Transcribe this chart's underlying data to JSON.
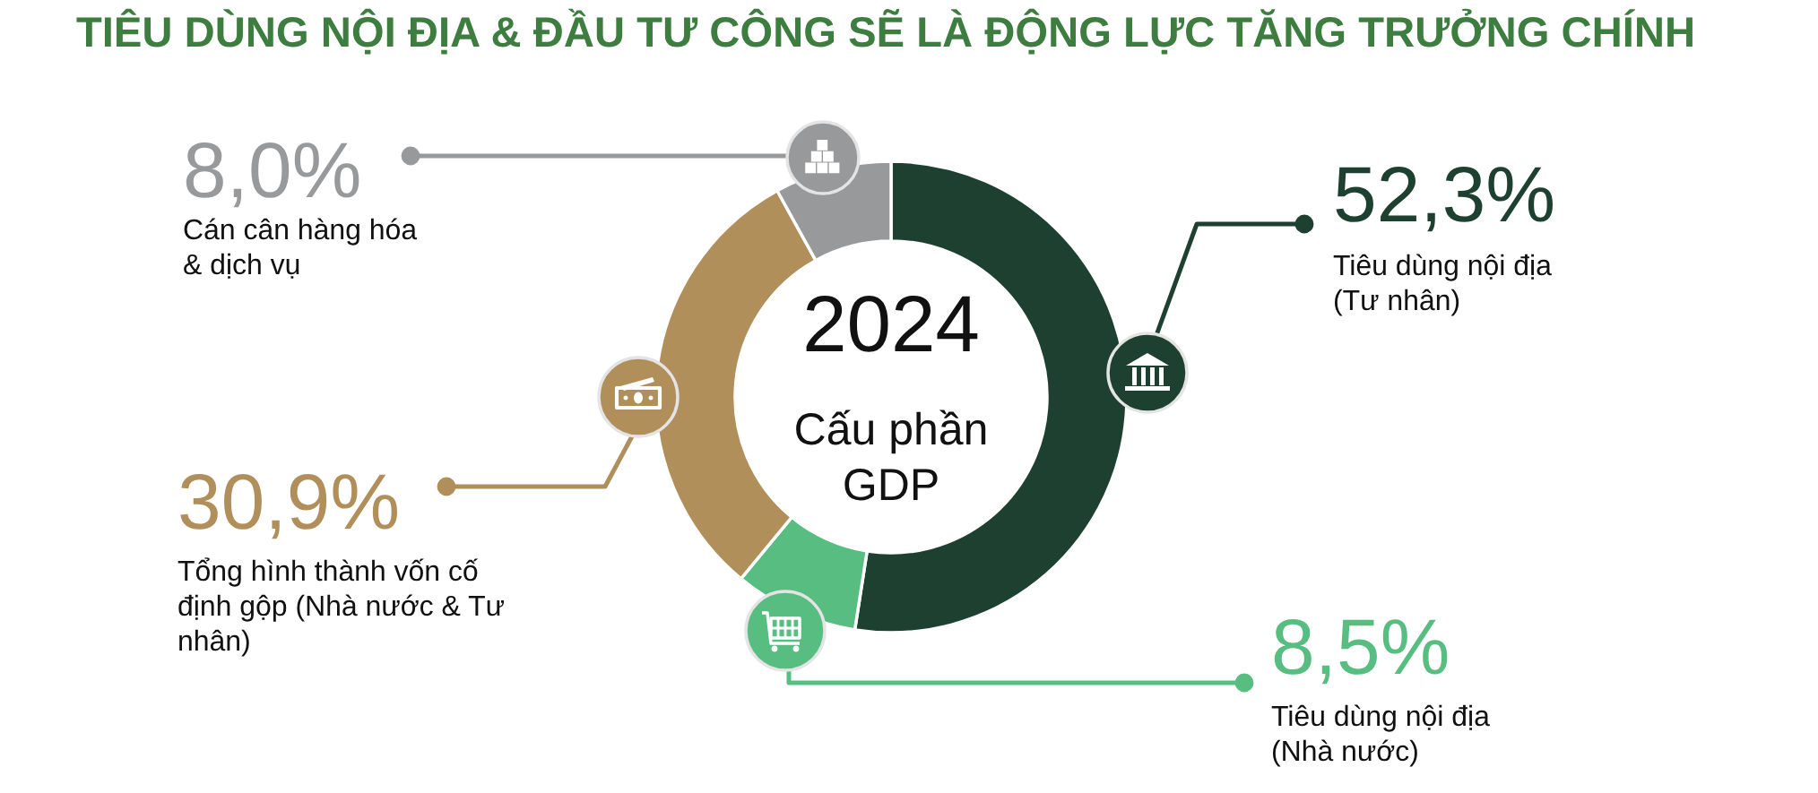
{
  "chart_data": {
    "type": "donut",
    "title": "TIÊU DÙNG NỘI ĐỊA & ĐẦU TƯ CÔNG SẼ LÀ ĐỘNG LỰC TĂNG TRƯỞNG CHÍNH",
    "categories": [
      "Tiêu dùng nội địa\n(Tư nhân)",
      "Tiêu dùng nội địa\n(Nhà nước)",
      "Tổng hình thành vốn cố\nđịnh gộp (Nhà nước & Tư\nnhân)",
      "Cán cân hàng hóa\n& dịch vụ"
    ],
    "values": [
      52.3,
      8.5,
      30.9,
      8.0
    ],
    "colors": [
      "#1e4030",
      "#58bd80",
      "#b08f5a",
      "#98999b"
    ],
    "value_labels": [
      "52,3%",
      "8,5%",
      "30,9%",
      "8,0%"
    ],
    "annotations": [
      "2024",
      "Cấu phần\nGDP"
    ]
  }
}
